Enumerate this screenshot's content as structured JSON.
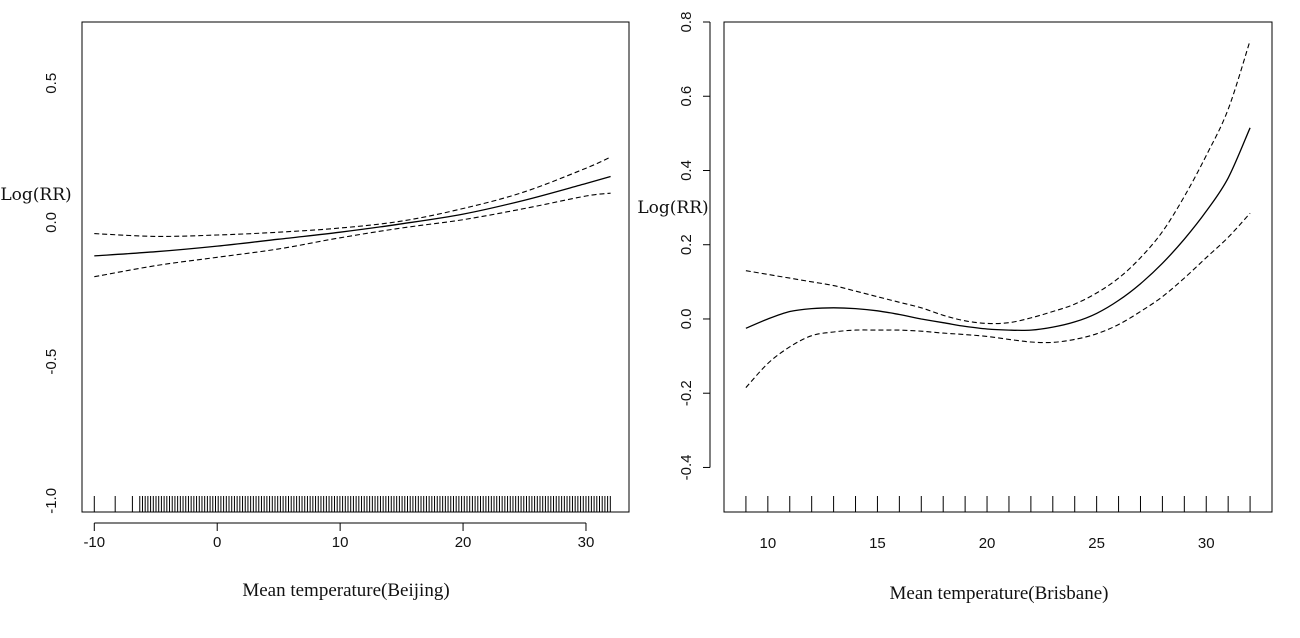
{
  "chart_data": [
    {
      "type": "line",
      "title": "",
      "xlabel": "Mean temperature(Beijing)",
      "ylabel": "Log(RR)",
      "xlim": [
        -11,
        33.5
      ],
      "ylim": [
        -1.04,
        0.72
      ],
      "xticks": [
        -10,
        0,
        10,
        20,
        30
      ],
      "xtick_labels": [
        "-10",
        "0",
        "10",
        "20",
        "30"
      ],
      "yticks": [
        -1.0,
        -0.5,
        0.0,
        0.5
      ],
      "ytick_labels": [
        "-1.0",
        "-0.5",
        "0.0",
        "0.5"
      ],
      "rug": "dense",
      "rug_range": [
        -10,
        32
      ],
      "series": [
        {
          "name": "estimate",
          "style": "solid",
          "x": [
            -10,
            -5,
            0,
            5,
            10,
            15,
            20,
            25,
            30,
            32
          ],
          "y": [
            -0.12,
            -0.105,
            -0.085,
            -0.06,
            -0.035,
            -0.005,
            0.03,
            0.08,
            0.14,
            0.165
          ]
        },
        {
          "name": "upper",
          "style": "dashed",
          "x": [
            -10,
            -5,
            0,
            5,
            10,
            15,
            20,
            25,
            30,
            32
          ],
          "y": [
            -0.04,
            -0.05,
            -0.045,
            -0.035,
            -0.02,
            0.005,
            0.05,
            0.11,
            0.195,
            0.235
          ]
        },
        {
          "name": "lower",
          "style": "dashed",
          "x": [
            -10,
            -5,
            0,
            5,
            10,
            15,
            20,
            25,
            30,
            32
          ],
          "y": [
            -0.195,
            -0.155,
            -0.125,
            -0.095,
            -0.055,
            -0.02,
            0.01,
            0.05,
            0.095,
            0.105
          ]
        }
      ]
    },
    {
      "type": "line",
      "title": "",
      "xlabel": "Mean temperature(Brisbane)",
      "ylabel": "Log(RR)",
      "xlim": [
        8,
        33
      ],
      "ylim": [
        -0.52,
        0.8
      ],
      "xticks": [
        10,
        15,
        20,
        25,
        30
      ],
      "xtick_labels": [
        "10",
        "15",
        "20",
        "25",
        "30"
      ],
      "yticks": [
        -0.4,
        -0.2,
        0.0,
        0.2,
        0.4,
        0.6,
        0.8
      ],
      "ytick_labels": [
        "-0.4",
        "-0.2",
        "0.0",
        "0.2",
        "0.4",
        "0.6",
        "0.8"
      ],
      "rug": "sparse",
      "rug_x": [
        9,
        10,
        11,
        12,
        13,
        14,
        15,
        16,
        17,
        18,
        19,
        20,
        21,
        22,
        23,
        24,
        25,
        26,
        27,
        28,
        29,
        30,
        31,
        32
      ],
      "series": [
        {
          "name": "estimate",
          "style": "solid",
          "x": [
            9,
            10,
            11,
            12,
            13,
            14,
            15,
            16,
            17,
            18,
            19,
            20,
            21,
            22,
            23,
            24,
            25,
            26,
            27,
            28,
            29,
            30,
            31,
            32
          ],
          "y": [
            -0.025,
            0.0,
            0.02,
            0.028,
            0.03,
            0.028,
            0.022,
            0.012,
            0.0,
            -0.01,
            -0.02,
            -0.027,
            -0.03,
            -0.03,
            -0.022,
            -0.008,
            0.015,
            0.05,
            0.095,
            0.15,
            0.215,
            0.29,
            0.38,
            0.515
          ]
        },
        {
          "name": "upper",
          "style": "dashed",
          "x": [
            9,
            10,
            11,
            12,
            13,
            14,
            15,
            16,
            17,
            18,
            19,
            20,
            21,
            22,
            23,
            24,
            25,
            26,
            27,
            28,
            29,
            30,
            31,
            32
          ],
          "y": [
            0.13,
            0.12,
            0.11,
            0.1,
            0.09,
            0.075,
            0.06,
            0.045,
            0.03,
            0.01,
            -0.005,
            -0.012,
            -0.01,
            0.003,
            0.02,
            0.04,
            0.07,
            0.11,
            0.165,
            0.235,
            0.33,
            0.44,
            0.565,
            0.75
          ]
        },
        {
          "name": "lower",
          "style": "dashed",
          "x": [
            9,
            10,
            11,
            12,
            13,
            14,
            15,
            16,
            17,
            18,
            19,
            20,
            21,
            22,
            23,
            24,
            25,
            26,
            27,
            28,
            29,
            30,
            31,
            32
          ],
          "y": [
            -0.185,
            -0.12,
            -0.075,
            -0.045,
            -0.035,
            -0.03,
            -0.03,
            -0.03,
            -0.033,
            -0.038,
            -0.042,
            -0.047,
            -0.055,
            -0.062,
            -0.063,
            -0.055,
            -0.04,
            -0.015,
            0.02,
            0.06,
            0.11,
            0.165,
            0.22,
            0.285
          ]
        }
      ]
    }
  ]
}
